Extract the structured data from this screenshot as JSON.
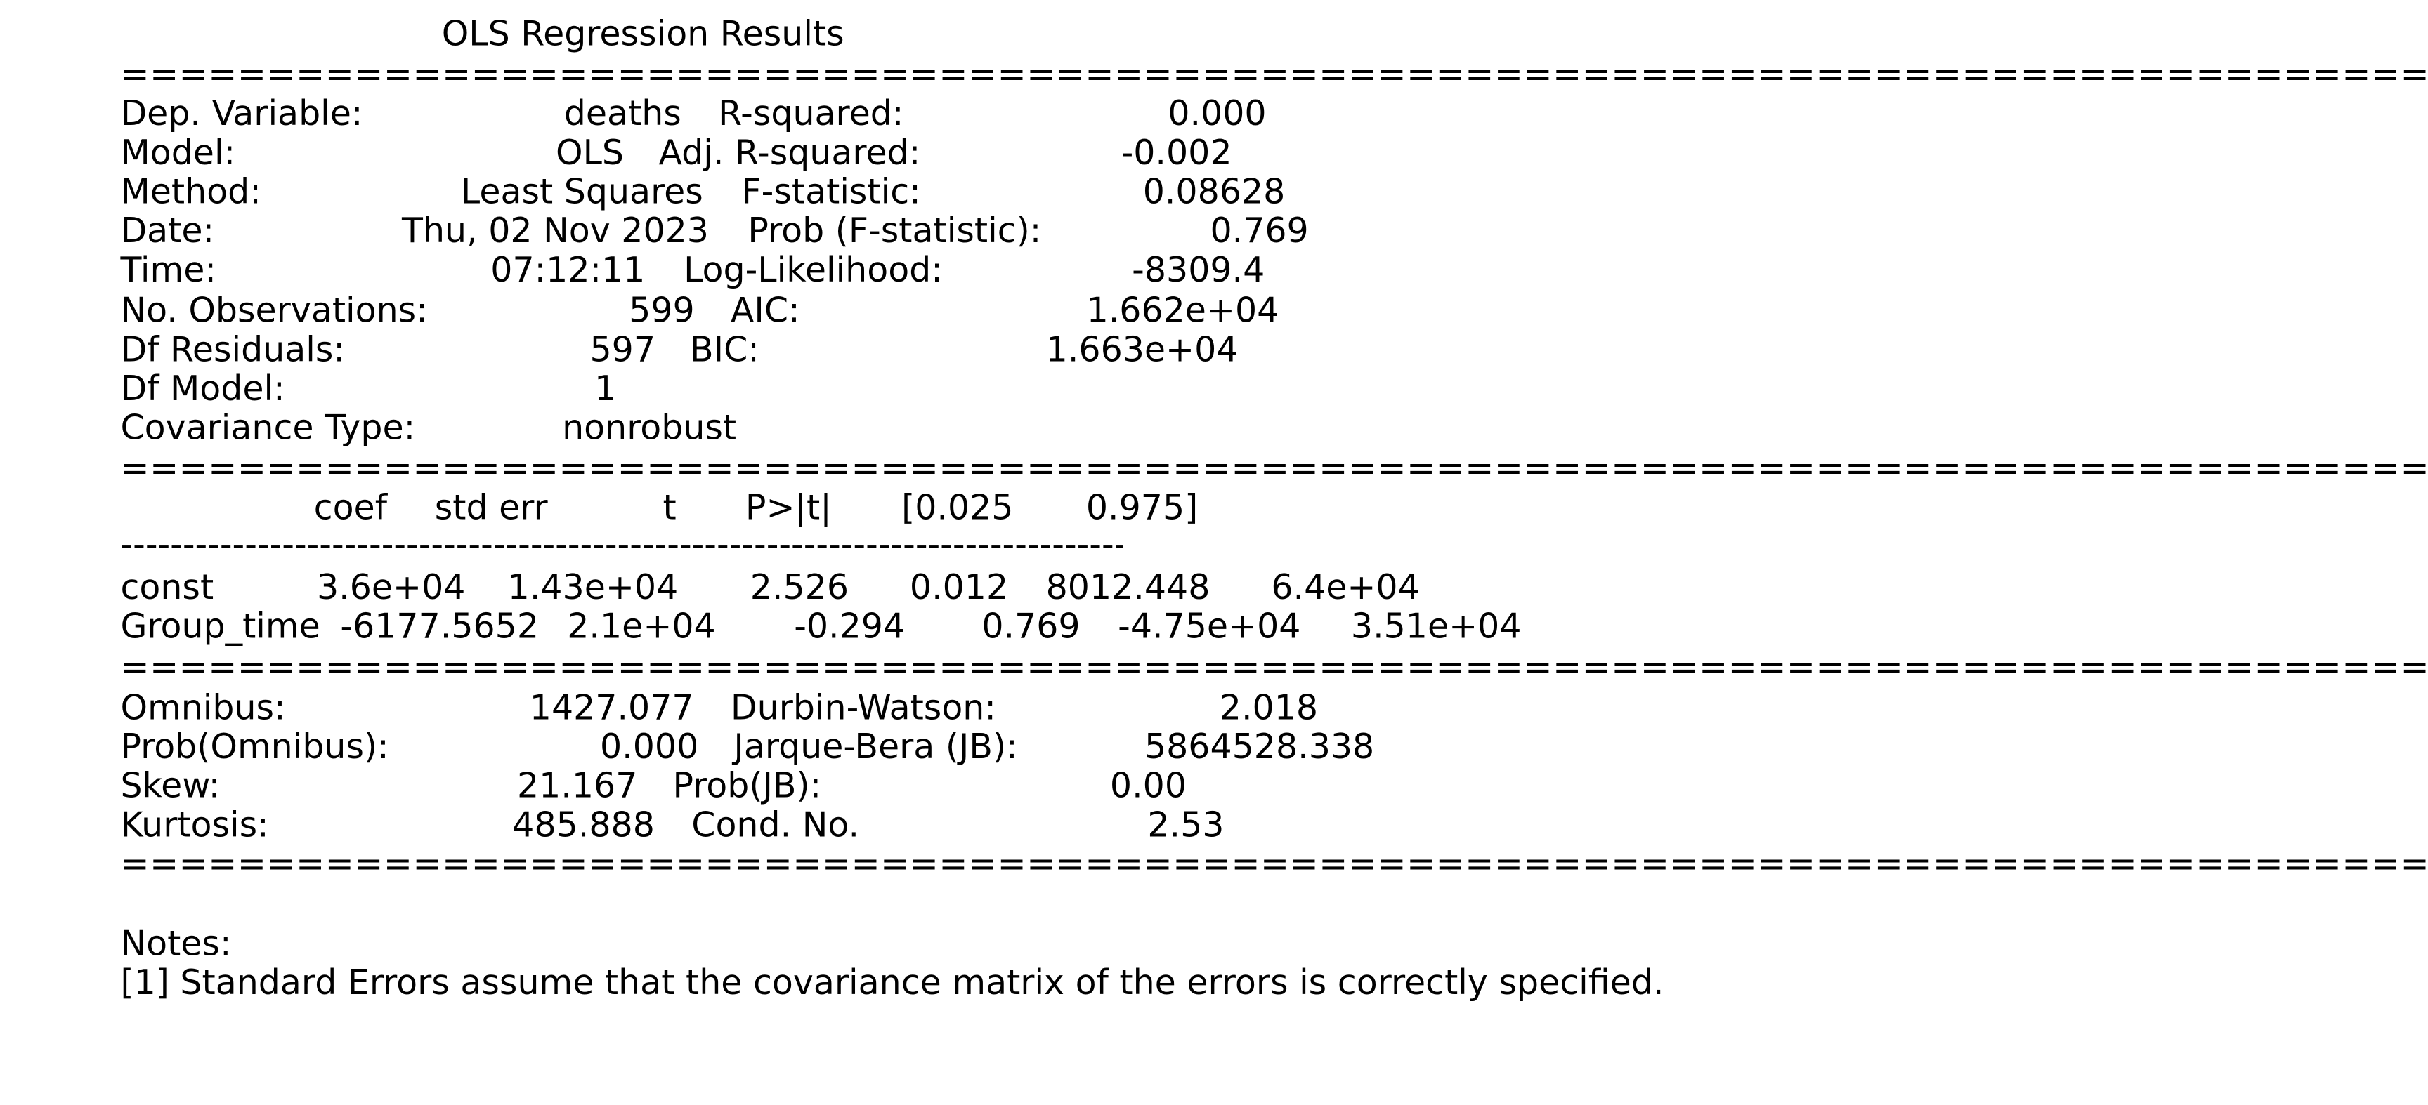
{
  "title": "OLS Regression Results",
  "separator_char": "=",
  "thin_separator_char": "-",
  "top_left": [
    {
      "label": "Dep. Variable:",
      "value": "deaths"
    },
    {
      "label": "Model:",
      "value": "OLS"
    },
    {
      "label": "Method:",
      "value": "Least Squares"
    },
    {
      "label": "Date:",
      "value": "Thu, 02 Nov 2023"
    },
    {
      "label": "Time:",
      "value": "07:12:11"
    },
    {
      "label": "No. Observations:",
      "value": "599"
    },
    {
      "label": "Df Residuals:",
      "value": "597"
    },
    {
      "label": "Df Model:",
      "value": "1"
    },
    {
      "label": "Covariance Type:",
      "value": "nonrobust"
    }
  ],
  "top_right": [
    {
      "label": "R-squared:",
      "value": "0.000"
    },
    {
      "label": "Adj. R-squared:",
      "value": "-0.002"
    },
    {
      "label": "F-statistic:",
      "value": "0.08628"
    },
    {
      "label": "Prob (F-statistic):",
      "value": "0.769"
    },
    {
      "label": "Log-Likelihood:",
      "value": "-8309.4"
    },
    {
      "label": "AIC:",
      "value": "1.662e+04"
    },
    {
      "label": "BIC:",
      "value": "1.663e+04"
    }
  ],
  "coef_table": {
    "headers": [
      "coef",
      "std err",
      "t",
      "P>|t|",
      "[0.025",
      "0.975]"
    ],
    "rows": [
      {
        "name": "const",
        "cells": [
          "3.6e+04",
          "1.43e+04",
          "2.526",
          "0.012",
          "8012.448",
          "6.4e+04"
        ]
      },
      {
        "name": "Group_time",
        "cells": [
          "-6177.5652",
          "2.1e+04",
          "-0.294",
          "0.769",
          "-4.75e+04",
          "3.51e+04"
        ]
      }
    ]
  },
  "bottom_left": [
    {
      "label": "Omnibus:",
      "value": "1427.077"
    },
    {
      "label": "Prob(Omnibus):",
      "value": "0.000"
    },
    {
      "label": "Skew:",
      "value": "21.167"
    },
    {
      "label": "Kurtosis:",
      "value": "485.888"
    }
  ],
  "bottom_right": [
    {
      "label": "Durbin-Watson:",
      "value": "2.018"
    },
    {
      "label": "Jarque-Bera (JB):",
      "value": "5864528.338"
    },
    {
      "label": "Prob(JB):",
      "value": "0.00"
    },
    {
      "label": "Cond. No.",
      "value": "2.53"
    }
  ],
  "notes": {
    "heading": "Notes:",
    "items": [
      "[1] Standard Errors assume that the covariance matrix of the errors is correctly specified."
    ]
  }
}
